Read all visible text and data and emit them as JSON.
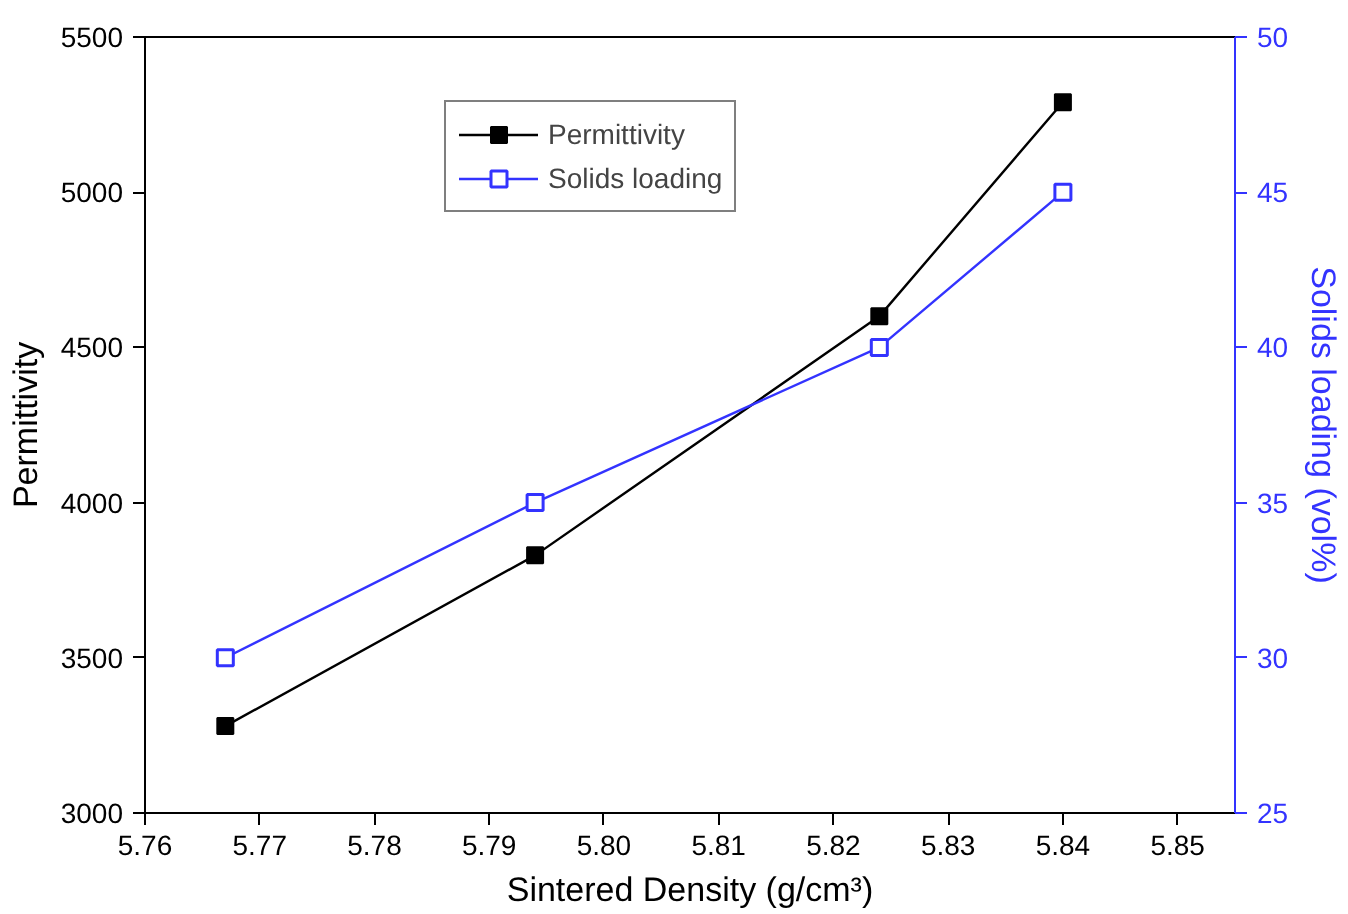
{
  "chart_data": {
    "type": "line",
    "xlabel": "Sintered Density (g/cm³)",
    "ylabel": "Permittivity",
    "y2label": "Solids loading (vol%)",
    "x": [
      5.767,
      5.794,
      5.824,
      5.84
    ],
    "series": [
      {
        "name": "Permittivity",
        "color": "#000000",
        "values": [
          3280,
          3830,
          4600,
          5290
        ],
        "marker": "square"
      },
      {
        "name": "Solids loading",
        "color": "#3333ff",
        "values": [
          30,
          35,
          40,
          45
        ],
        "axis": "y2",
        "marker": "square_open"
      }
    ],
    "xlim": [
      5.76,
      5.855
    ],
    "xticks": [
      {
        "value": 5.76,
        "label": "5.76"
      },
      5.77,
      5.78,
      5.79,
      {
        "value": 5.8,
        "label": "5.80"
      },
      5.81,
      5.82,
      5.83,
      5.84,
      5.85
    ],
    "ylim": [
      3000,
      5500
    ],
    "yticks": [
      3000,
      3500,
      4000,
      4500,
      5000,
      5500
    ],
    "y2lim": [
      25,
      50
    ],
    "y2ticks": [
      25,
      30,
      35,
      40,
      45,
      50
    ],
    "legend": "top",
    "grid": false,
    "line_style": "solid"
  }
}
